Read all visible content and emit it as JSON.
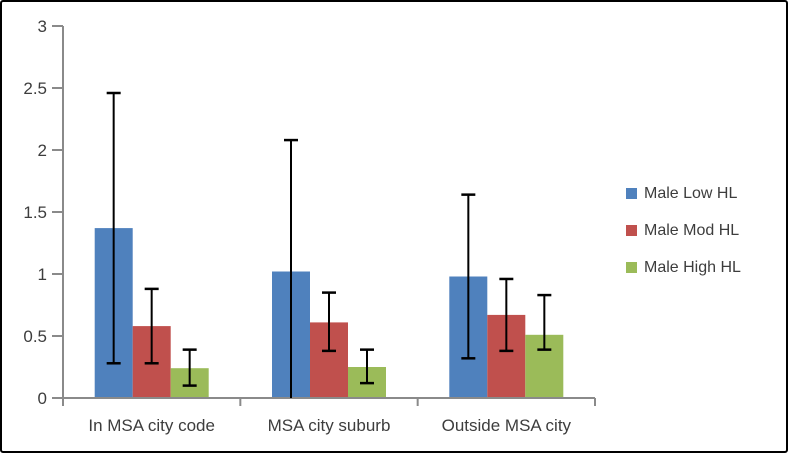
{
  "figure": {
    "background": "#ffffff",
    "border_color": "#000000"
  },
  "chart_data": {
    "type": "bar",
    "title": "",
    "xlabel": "",
    "ylabel": "",
    "grid": false,
    "legend_position": "right",
    "categories": [
      "In MSA city code",
      "MSA city suburb",
      "Outside MSA city"
    ],
    "series": [
      {
        "name": "Male Low HL",
        "color": "#4F81BD",
        "values": [
          1.37,
          1.02,
          0.98
        ],
        "error_low": [
          0.28,
          0.0,
          0.32
        ],
        "error_high": [
          2.46,
          2.08,
          1.64
        ]
      },
      {
        "name": "Male Mod HL",
        "color": "#C0504D",
        "values": [
          0.58,
          0.61,
          0.67
        ],
        "error_low": [
          0.28,
          0.38,
          0.38
        ],
        "error_high": [
          0.88,
          0.85,
          0.96
        ]
      },
      {
        "name": "Male High HL",
        "color": "#9BBB59",
        "values": [
          0.24,
          0.25,
          0.51
        ],
        "error_low": [
          0.1,
          0.12,
          0.39
        ],
        "error_high": [
          0.39,
          0.39,
          0.83
        ]
      }
    ],
    "ylim": [
      0,
      3
    ],
    "ytick_step": 0.5,
    "ytick_labels": [
      "0",
      "0.5",
      "1",
      "1.5",
      "2",
      "2.5",
      "3"
    ],
    "axis_color": "#8a8a8a",
    "error_bar_color": "#000000",
    "text_color": "#3d3d3d"
  }
}
